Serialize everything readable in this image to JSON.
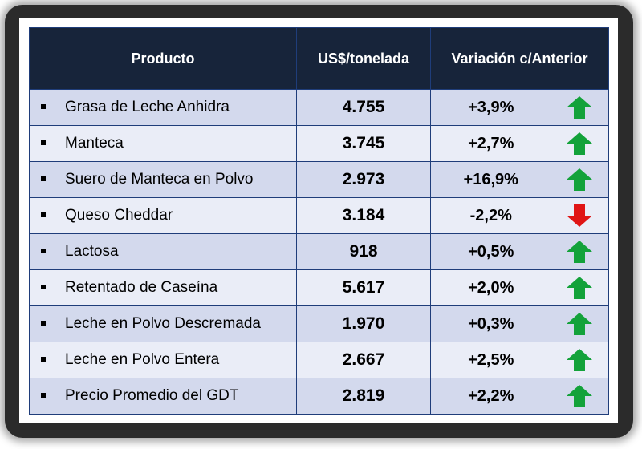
{
  "colors": {
    "header_bg": "#17243a",
    "row_dark": "#d3d9ed",
    "row_light": "#eaedf7",
    "up_arrow": "#13a23a",
    "down_arrow": "#e01515"
  },
  "table": {
    "headers": [
      "Producto",
      "US$/tonelada",
      "Variación c/Anterior"
    ],
    "rows": [
      {
        "product": "Grasa de Leche Anhidra",
        "price": "4.755",
        "change": "+3,9%",
        "trend": "up-arrow-icon"
      },
      {
        "product": "Manteca",
        "price": "3.745",
        "change": "+2,7%",
        "trend": "up-arrow-icon"
      },
      {
        "product": "Suero de Manteca en Polvo",
        "price": "2.973",
        "change": "+16,9%",
        "trend": "up-arrow-icon"
      },
      {
        "product": "Queso Cheddar",
        "price": "3.184",
        "change": "-2,2%",
        "trend": "down-arrow-icon"
      },
      {
        "product": "Lactosa",
        "price": "918",
        "change": "+0,5%",
        "trend": "up-arrow-icon"
      },
      {
        "product": "Retentado de Caseína",
        "price": "5.617",
        "change": "+2,0%",
        "trend": "up-arrow-icon"
      },
      {
        "product": "Leche en Polvo Descremada",
        "price": "1.970",
        "change": "+0,3%",
        "trend": "up-arrow-icon"
      },
      {
        "product": "Leche en Polvo Entera",
        "price": "2.667",
        "change": "+2,5%",
        "trend": "up-arrow-icon"
      },
      {
        "product": "Precio Promedio del GDT",
        "price": "2.819",
        "change": "+2,2%",
        "trend": "up-arrow-icon"
      }
    ]
  }
}
